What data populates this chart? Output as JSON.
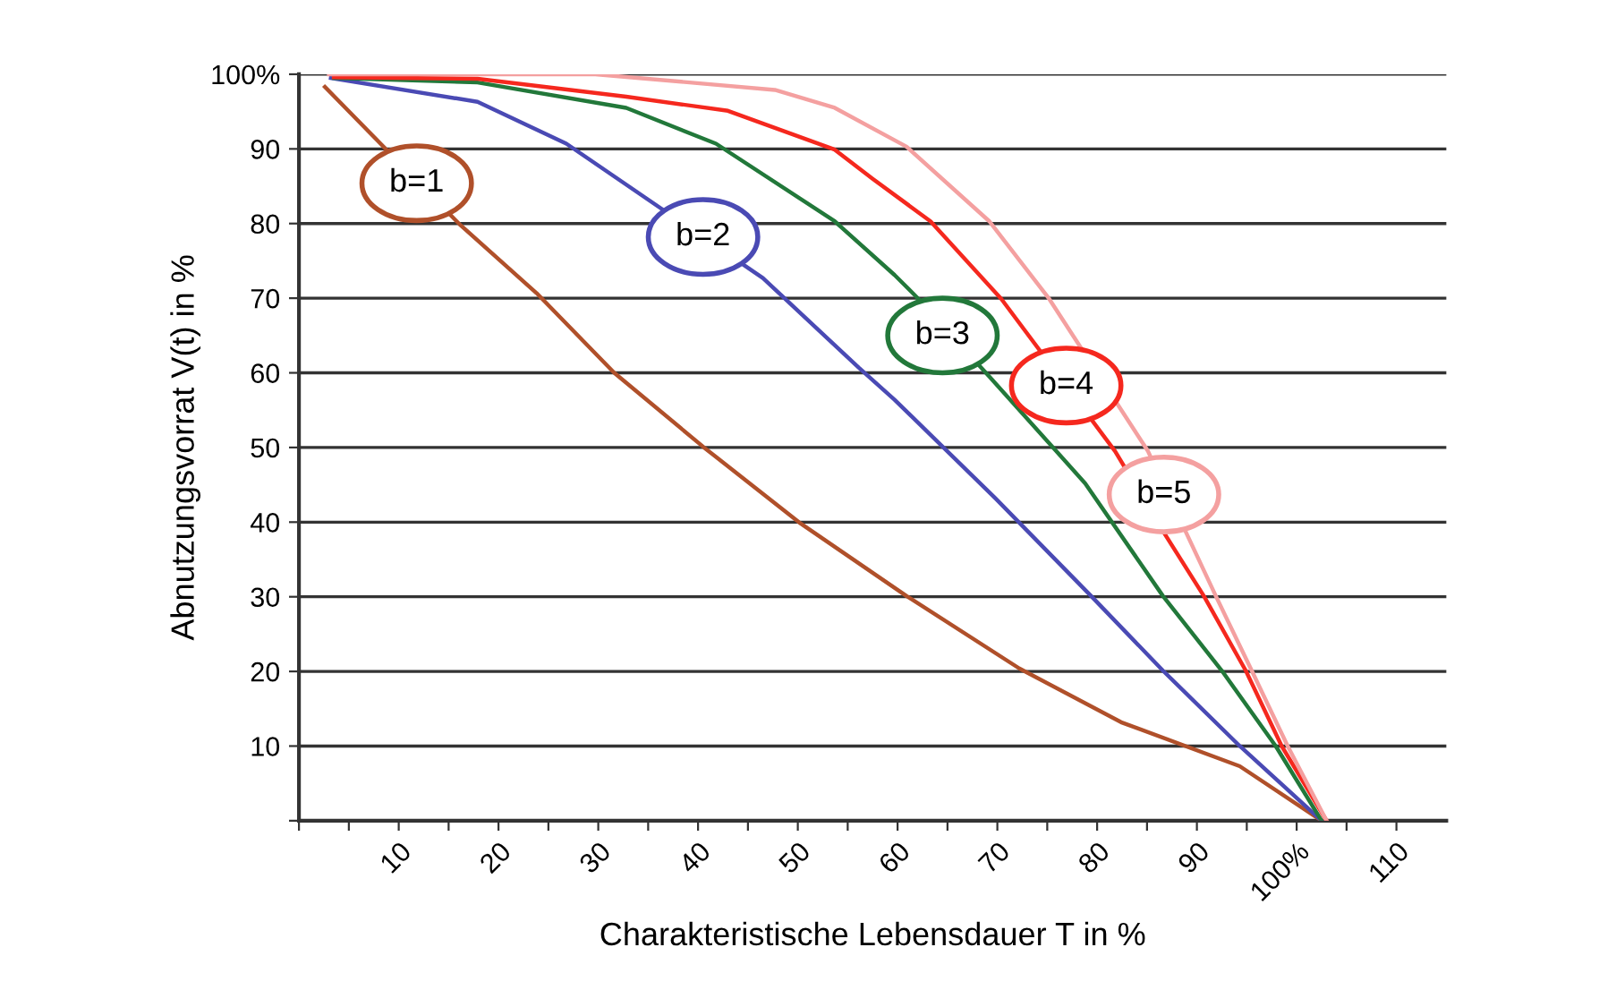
{
  "chart_data": {
    "type": "line",
    "xlabel": "Charakteristische Lebensdauer T in %",
    "ylabel": "Abnutzungsvorrat V(t) in %",
    "xlim": [
      0,
      115
    ],
    "xticks": [
      {
        "value": 0,
        "label": null
      },
      {
        "value": 5,
        "label": null
      },
      10,
      {
        "value": 15,
        "label": null
      },
      20,
      {
        "value": 25,
        "label": null
      },
      30,
      {
        "value": 35,
        "label": null
      },
      40,
      {
        "value": 45,
        "label": null
      },
      50,
      {
        "value": 55,
        "label": null
      },
      60,
      {
        "value": 65,
        "label": null
      },
      70,
      {
        "value": 75,
        "label": null
      },
      80,
      {
        "value": 85,
        "label": null
      },
      90,
      {
        "value": 95,
        "label": null
      },
      {
        "value": 100,
        "label": "100%"
      },
      {
        "value": 105,
        "label": null
      },
      110
    ],
    "ylim": [
      0,
      100
    ],
    "yticks": [
      {
        "value": 0,
        "label": null
      },
      10,
      20,
      30,
      40,
      50,
      60,
      70,
      80,
      90,
      {
        "value": 100,
        "label": "100%"
      }
    ],
    "grid": "y",
    "marker": "none",
    "line_style": "solid",
    "series": [
      {
        "color": "#b0502a",
        "x": [
          2.6,
          16.1,
          23.8,
          31.6,
          40.6,
          50.1,
          60.9,
          72.2,
          82.4,
          94.3,
          102.5
        ],
        "values": [
          98.3,
          79.9,
          70.7,
          60,
          50,
          40,
          30.1,
          20.4,
          13.2,
          7.3,
          0
        ]
      },
      {
        "color": "#4a4ab4",
        "x": [
          3.2,
          17.9,
          26.8,
          46.5,
          56.1,
          59.7,
          69.8,
          79.4,
          86.6,
          94.3,
          102.5
        ],
        "values": [
          99.5,
          96.3,
          90.7,
          72.7,
          60.7,
          56.4,
          43.2,
          30.1,
          20.1,
          10,
          0
        ]
      },
      {
        "color": "#22783a",
        "x": [
          3.5,
          17.9,
          32.8,
          41.8,
          53.7,
          59.7,
          62.1,
          69.2,
          78.8,
          86.6,
          92.5,
          97.9,
          102.5
        ],
        "values": [
          99.5,
          98.9,
          95.5,
          90.7,
          80.3,
          73.1,
          69.9,
          59.5,
          45.2,
          30.1,
          20.1,
          10,
          0
        ]
      },
      {
        "color": "#f5281e",
        "x": [
          3.5,
          17.9,
          32.8,
          43,
          53.7,
          57.5,
          63.3,
          70.4,
          81.8,
          86.6,
          90.7,
          94.9,
          98.5,
          103
        ],
        "values": [
          99.6,
          99.4,
          97,
          95.1,
          89.9,
          86,
          80.3,
          69.9,
          49.5,
          38.8,
          30.1,
          20.1,
          10,
          0
        ]
      },
      {
        "color": "#f4a0a0",
        "x": [
          3,
          29.7,
          47.7,
          53.7,
          60.9,
          69.2,
          75.2,
          85.1,
          91.9,
          95.5,
          99.1,
          103
        ],
        "values": [
          100,
          100,
          97.9,
          95.5,
          90.3,
          80.3,
          69.9,
          49.5,
          30.1,
          20.1,
          10,
          0
        ]
      }
    ],
    "annotations": [
      {
        "text": "b=1",
        "x": 11.8,
        "y": 85.4
      },
      {
        "text": "b=2",
        "x": 40.5,
        "y": 78.2
      },
      {
        "text": "b=3",
        "x": 64.5,
        "y": 65
      },
      {
        "text": "b=4",
        "x": 76.9,
        "y": 58.3
      },
      {
        "text": "b=5",
        "x": 86.7,
        "y": 43.7
      }
    ]
  }
}
